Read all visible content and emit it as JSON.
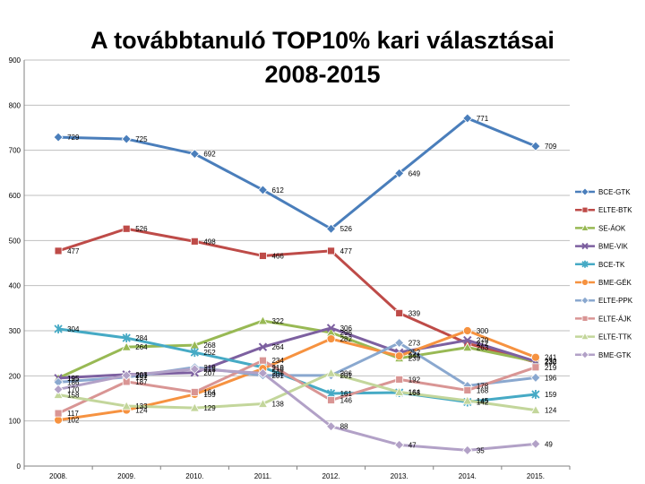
{
  "chart_data": {
    "type": "line",
    "title_lines": [
      "A továbbtanuló TOP10% kari választásai",
      "2008-2015"
    ],
    "categories": [
      "2008.",
      "2009.",
      "2010.",
      "2011.",
      "2012.",
      "2013.",
      "2014.",
      "2015."
    ],
    "ylim": [
      0,
      900
    ],
    "yticks": [
      "0",
      "100",
      "200",
      "300",
      "400",
      "500",
      "600",
      "700",
      "800",
      "900"
    ],
    "grid": true,
    "legend_position": "right",
    "xlabel": "",
    "ylabel": "",
    "series": [
      {
        "name": "BCE-GTK",
        "color": "#4a7ebb",
        "marker": "diamond",
        "values": [
          729,
          725,
          692,
          612,
          526,
          649,
          771,
          709
        ]
      },
      {
        "name": "ELTE-BTK",
        "color": "#be4b48",
        "marker": "square",
        "values": [
          477,
          526,
          498,
          466,
          477,
          339,
          272,
          230
        ]
      },
      {
        "name": "SE-ÁOK",
        "color": "#98b954",
        "marker": "triangle",
        "values": [
          195,
          264,
          268,
          322,
          296,
          239,
          263,
          232
        ]
      },
      {
        "name": "BME-VIK",
        "color": "#7d60a0",
        "marker": "x",
        "values": [
          195,
          203,
          207,
          264,
          306,
          252,
          279,
          232
        ]
      },
      {
        "name": "BCE-TK",
        "color": "#46aac5",
        "marker": "star",
        "values": [
          304,
          284,
          252,
          219,
          161,
          163,
          142,
          159
        ]
      },
      {
        "name": "BME-GÉK",
        "color": "#f69240",
        "marker": "circle",
        "values": [
          102,
          124,
          159,
          216,
          282,
          244,
          300,
          241
        ]
      },
      {
        "name": "ELTE-PPK",
        "color": "#8aa8cf",
        "marker": "diamond",
        "values": [
          186,
          197,
          219,
          201,
          201,
          273,
          178,
          196
        ]
      },
      {
        "name": "ELTE-ÁJK",
        "color": "#d99594",
        "marker": "square",
        "values": [
          117,
          187,
          164,
          234,
          146,
          192,
          168,
          219
        ]
      },
      {
        "name": "ELTE-TTK",
        "color": "#c3d69b",
        "marker": "triangle",
        "values": [
          158,
          133,
          129,
          138,
          206,
          164,
          145,
          124
        ]
      },
      {
        "name": "BME-GTK",
        "color": "#b2a1c7",
        "marker": "diamond",
        "values": [
          170,
          201,
          215,
          206,
          88,
          47,
          35,
          49
        ]
      }
    ]
  }
}
